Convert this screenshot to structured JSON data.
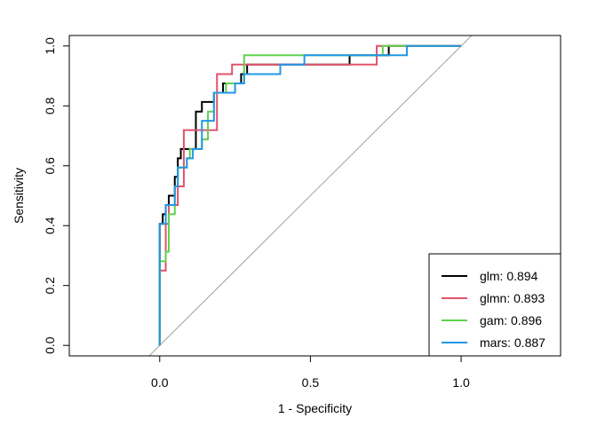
{
  "chart_data": {
    "type": "line",
    "title": "",
    "xlabel": "1 - Specificity",
    "ylabel": "Sensitivity",
    "xlim": [
      -0.3,
      1.33
    ],
    "ylim": [
      -0.035,
      1.035
    ],
    "x_ticks": [
      0.0,
      0.5,
      1.0
    ],
    "x_tick_labels": [
      "0.0",
      "0.5",
      "1.0"
    ],
    "y_ticks": [
      0.0,
      0.2,
      0.4,
      0.6,
      0.8,
      1.0
    ],
    "y_tick_labels": [
      "0.0",
      "0.2",
      "0.4",
      "0.6",
      "0.8",
      "1.0"
    ],
    "grid": false,
    "legend_position": "bottom-right",
    "reference_line": {
      "from": [
        0,
        0
      ],
      "to": [
        1,
        1
      ],
      "color": "#a0a0a0"
    },
    "series": [
      {
        "name": "glm",
        "label": "glm: 0.894",
        "auc": 0.894,
        "color": "#000000",
        "points": [
          [
            0,
            0
          ],
          [
            0,
            0.25
          ],
          [
            0,
            0.406
          ],
          [
            0.01,
            0.406
          ],
          [
            0.01,
            0.438
          ],
          [
            0.02,
            0.438
          ],
          [
            0.02,
            0.469
          ],
          [
            0.03,
            0.469
          ],
          [
            0.03,
            0.5
          ],
          [
            0.05,
            0.5
          ],
          [
            0.05,
            0.563
          ],
          [
            0.06,
            0.563
          ],
          [
            0.06,
            0.625
          ],
          [
            0.07,
            0.625
          ],
          [
            0.07,
            0.656
          ],
          [
            0.12,
            0.656
          ],
          [
            0.12,
            0.781
          ],
          [
            0.14,
            0.781
          ],
          [
            0.14,
            0.813
          ],
          [
            0.18,
            0.813
          ],
          [
            0.18,
            0.844
          ],
          [
            0.21,
            0.844
          ],
          [
            0.21,
            0.875
          ],
          [
            0.27,
            0.875
          ],
          [
            0.27,
            0.906
          ],
          [
            0.29,
            0.906
          ],
          [
            0.29,
            0.938
          ],
          [
            0.63,
            0.938
          ],
          [
            0.63,
            0.969
          ],
          [
            0.76,
            0.969
          ],
          [
            0.76,
            1.0
          ],
          [
            1.0,
            1.0
          ]
        ]
      },
      {
        "name": "glmn",
        "label": "glmn: 0.893",
        "auc": 0.893,
        "color": "#DF536B",
        "points": [
          [
            0,
            0
          ],
          [
            0,
            0.25
          ],
          [
            0.02,
            0.25
          ],
          [
            0.02,
            0.406
          ],
          [
            0.03,
            0.406
          ],
          [
            0.03,
            0.469
          ],
          [
            0.06,
            0.469
          ],
          [
            0.06,
            0.531
          ],
          [
            0.08,
            0.531
          ],
          [
            0.08,
            0.719
          ],
          [
            0.19,
            0.719
          ],
          [
            0.19,
            0.906
          ],
          [
            0.24,
            0.906
          ],
          [
            0.24,
            0.938
          ],
          [
            0.72,
            0.938
          ],
          [
            0.72,
            1.0
          ],
          [
            1.0,
            1.0
          ]
        ]
      },
      {
        "name": "gam",
        "label": "gam: 0.896",
        "auc": 0.896,
        "color": "#61D04F",
        "points": [
          [
            0,
            0
          ],
          [
            0,
            0.281
          ],
          [
            0.02,
            0.281
          ],
          [
            0.02,
            0.313
          ],
          [
            0.03,
            0.313
          ],
          [
            0.03,
            0.438
          ],
          [
            0.05,
            0.438
          ],
          [
            0.05,
            0.531
          ],
          [
            0.06,
            0.531
          ],
          [
            0.06,
            0.594
          ],
          [
            0.09,
            0.594
          ],
          [
            0.09,
            0.625
          ],
          [
            0.1,
            0.625
          ],
          [
            0.1,
            0.656
          ],
          [
            0.14,
            0.656
          ],
          [
            0.14,
            0.688
          ],
          [
            0.16,
            0.688
          ],
          [
            0.16,
            0.781
          ],
          [
            0.18,
            0.781
          ],
          [
            0.18,
            0.844
          ],
          [
            0.22,
            0.844
          ],
          [
            0.22,
            0.875
          ],
          [
            0.28,
            0.875
          ],
          [
            0.28,
            0.969
          ],
          [
            0.74,
            0.969
          ],
          [
            0.74,
            1.0
          ],
          [
            1.0,
            1.0
          ]
        ]
      },
      {
        "name": "mars",
        "label": "mars: 0.887",
        "auc": 0.887,
        "color": "#2297E6",
        "points": [
          [
            0,
            0
          ],
          [
            0,
            0.406
          ],
          [
            0.02,
            0.406
          ],
          [
            0.02,
            0.469
          ],
          [
            0.05,
            0.469
          ],
          [
            0.05,
            0.531
          ],
          [
            0.06,
            0.531
          ],
          [
            0.06,
            0.594
          ],
          [
            0.09,
            0.594
          ],
          [
            0.09,
            0.625
          ],
          [
            0.11,
            0.625
          ],
          [
            0.11,
            0.656
          ],
          [
            0.14,
            0.656
          ],
          [
            0.14,
            0.75
          ],
          [
            0.18,
            0.75
          ],
          [
            0.18,
            0.844
          ],
          [
            0.25,
            0.844
          ],
          [
            0.25,
            0.875
          ],
          [
            0.28,
            0.875
          ],
          [
            0.28,
            0.906
          ],
          [
            0.4,
            0.906
          ],
          [
            0.4,
            0.938
          ],
          [
            0.48,
            0.938
          ],
          [
            0.48,
            0.969
          ],
          [
            0.82,
            0.969
          ],
          [
            0.82,
            1.0
          ],
          [
            1.0,
            1.0
          ]
        ]
      }
    ]
  }
}
